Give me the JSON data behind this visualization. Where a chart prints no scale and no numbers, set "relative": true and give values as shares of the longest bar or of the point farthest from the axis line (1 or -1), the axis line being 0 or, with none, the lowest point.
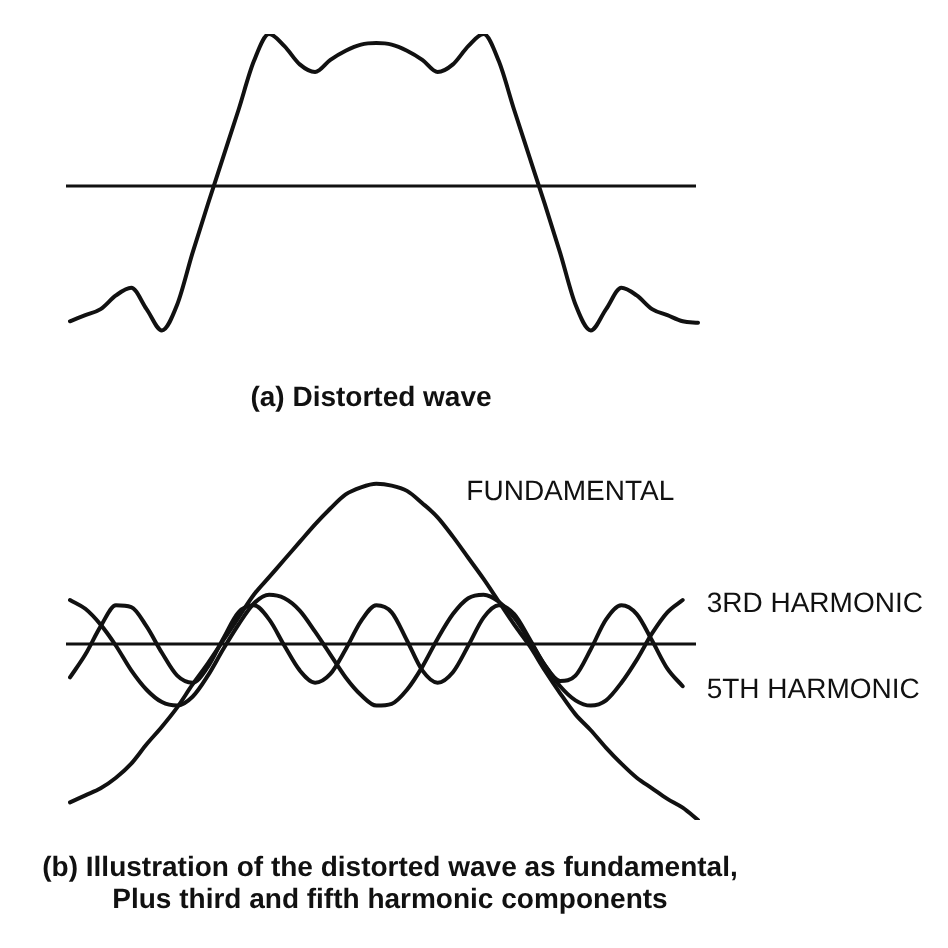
{
  "chart_data": [
    {
      "type": "line",
      "title": "(a) Distorted wave",
      "relative": true,
      "categories": [
        null,
        null,
        null,
        null,
        null,
        null,
        null,
        null,
        null,
        null,
        null,
        null,
        null,
        null,
        null,
        null,
        null,
        null,
        null,
        null,
        null,
        null,
        null,
        null,
        null,
        null,
        null,
        null,
        null,
        null,
        null,
        null,
        null,
        null,
        null,
        null,
        null,
        null,
        null,
        null,
        null,
        null
      ],
      "series": [
        {
          "color": "#111111",
          "values": [
            -0.89,
            -0.85,
            -0.81,
            -0.72,
            -0.67,
            -0.81,
            -0.95,
            -0.78,
            -0.44,
            -0.12,
            0.19,
            0.5,
            0.82,
            1.0,
            0.92,
            0.8,
            0.75,
            0.83,
            0.89,
            0.93,
            0.94,
            0.93,
            0.89,
            0.83,
            0.75,
            0.8,
            0.92,
            1.0,
            0.82,
            0.5,
            0.19,
            -0.12,
            -0.44,
            -0.78,
            -0.95,
            -0.81,
            -0.67,
            -0.72,
            -0.81,
            -0.85,
            -0.89,
            -0.9
          ]
        }
      ]
    },
    {
      "type": "line",
      "title": "(b) Illustration of the distorted wave as fundamental,\nPlus third and fifth harmonic components",
      "relative": true,
      "categories": [
        null,
        null,
        null,
        null,
        null,
        null,
        null,
        null,
        null,
        null,
        null,
        null,
        null,
        null,
        null,
        null,
        null,
        null,
        null,
        null,
        null,
        null,
        null,
        null,
        null,
        null,
        null,
        null,
        null,
        null,
        null,
        null,
        null,
        null,
        null,
        null,
        null,
        null,
        null,
        null,
        null,
        null
      ],
      "series": [
        {
          "name": "FUNDAMENTAL",
          "color": "#111111",
          "values": [
            -0.9,
            -0.86,
            -0.82,
            -0.76,
            -0.68,
            -0.57,
            -0.47,
            -0.36,
            -0.23,
            -0.11,
            0.02,
            0.15,
            0.28,
            0.38,
            0.48,
            0.58,
            0.68,
            0.77,
            0.85,
            0.89,
            0.91,
            0.9,
            0.87,
            0.8,
            0.72,
            0.61,
            0.49,
            0.37,
            0.24,
            0.11,
            -0.01,
            -0.15,
            -0.28,
            -0.4,
            -0.49,
            -0.59,
            -0.68,
            -0.76,
            -0.82,
            -0.88,
            -0.93,
            -1.0
          ]
        },
        {
          "name": "3RD HARMONIC",
          "color": "#111111",
          "values": [
            0.25,
            0.2,
            0.11,
            -0.01,
            -0.15,
            -0.26,
            -0.33,
            -0.35,
            -0.3,
            -0.18,
            -0.03,
            0.11,
            0.23,
            0.28,
            0.26,
            0.19,
            0.07,
            -0.06,
            -0.19,
            -0.29,
            -0.35,
            -0.34,
            -0.26,
            -0.13,
            0.03,
            0.17,
            0.26,
            0.28,
            0.24,
            0.15,
            0.02,
            -0.12,
            -0.24,
            -0.32,
            -0.35,
            -0.32,
            -0.22,
            -0.09,
            0.06,
            0.18,
            0.25,
            null
          ]
        },
        {
          "name": "5TH HARMONIC",
          "color": "#111111",
          "values": [
            -0.19,
            -0.06,
            0.1,
            0.22,
            0.21,
            0.1,
            -0.05,
            -0.18,
            -0.22,
            -0.13,
            0.03,
            0.18,
            0.22,
            0.14,
            -0.01,
            -0.15,
            -0.22,
            -0.17,
            -0.03,
            0.13,
            0.22,
            0.18,
            0.02,
            -0.15,
            -0.22,
            -0.16,
            -0.01,
            0.15,
            0.22,
            0.17,
            0.03,
            -0.12,
            -0.21,
            -0.18,
            -0.03,
            0.14,
            0.22,
            0.17,
            0.02,
            -0.14,
            -0.24,
            null
          ]
        }
      ]
    }
  ]
}
